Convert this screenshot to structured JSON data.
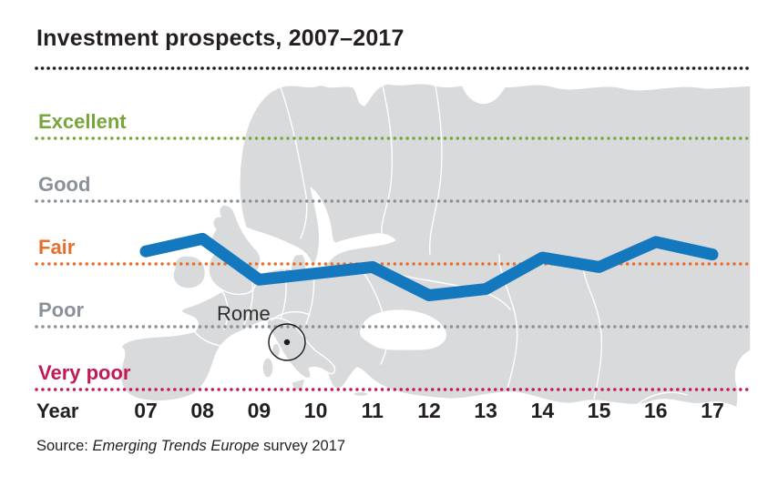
{
  "title": "Investment prospects, 2007–2017",
  "source": {
    "prefix": "Source: ",
    "italic": "Emerging Trends Europe",
    "suffix": " survey 2017"
  },
  "year_axis": {
    "label": "Year",
    "years": [
      "07",
      "08",
      "09",
      "10",
      "11",
      "12",
      "13",
      "14",
      "15",
      "16",
      "17"
    ]
  },
  "categories": [
    {
      "label": "Excellent",
      "value": 5,
      "color": "#76A63C"
    },
    {
      "label": "Good",
      "value": 4,
      "color": "#8A9199"
    },
    {
      "label": "Fair",
      "value": 3,
      "color": "#E76F2B"
    },
    {
      "label": "Poor",
      "value": 2,
      "color": "#8A9199"
    },
    {
      "label": "Very poor",
      "value": 1,
      "color": "#C11A57"
    }
  ],
  "map_label": {
    "city": "Rome"
  },
  "colors": {
    "trend_line": "#1478BE",
    "title_rule": "#231F20",
    "map_fill": "#D8DADC",
    "text_dark": "#231F20"
  },
  "chart_data": {
    "type": "line",
    "title": "Investment prospects, 2007–2017",
    "x": [
      "07",
      "08",
      "09",
      "10",
      "11",
      "12",
      "13",
      "14",
      "15",
      "16",
      "17"
    ],
    "series": [
      {
        "name": "Investment prospects (Rome)",
        "color": "#1478BE",
        "values": [
          3.2,
          3.4,
          2.75,
          2.85,
          2.95,
          2.5,
          2.6,
          3.1,
          2.95,
          3.35,
          3.15
        ]
      }
    ],
    "xlabel": "Year",
    "scale": {
      "labels": [
        "Very poor",
        "Poor",
        "Fair",
        "Good",
        "Excellent"
      ],
      "values": [
        1,
        2,
        3,
        4,
        5
      ]
    },
    "ylim": [
      0.5,
      5.5
    ],
    "grid": "dotted horizontal category lines",
    "legend_position": "none",
    "background": "grey map of Europe",
    "annotations": [
      "Rome marker circle over Italy"
    ]
  }
}
